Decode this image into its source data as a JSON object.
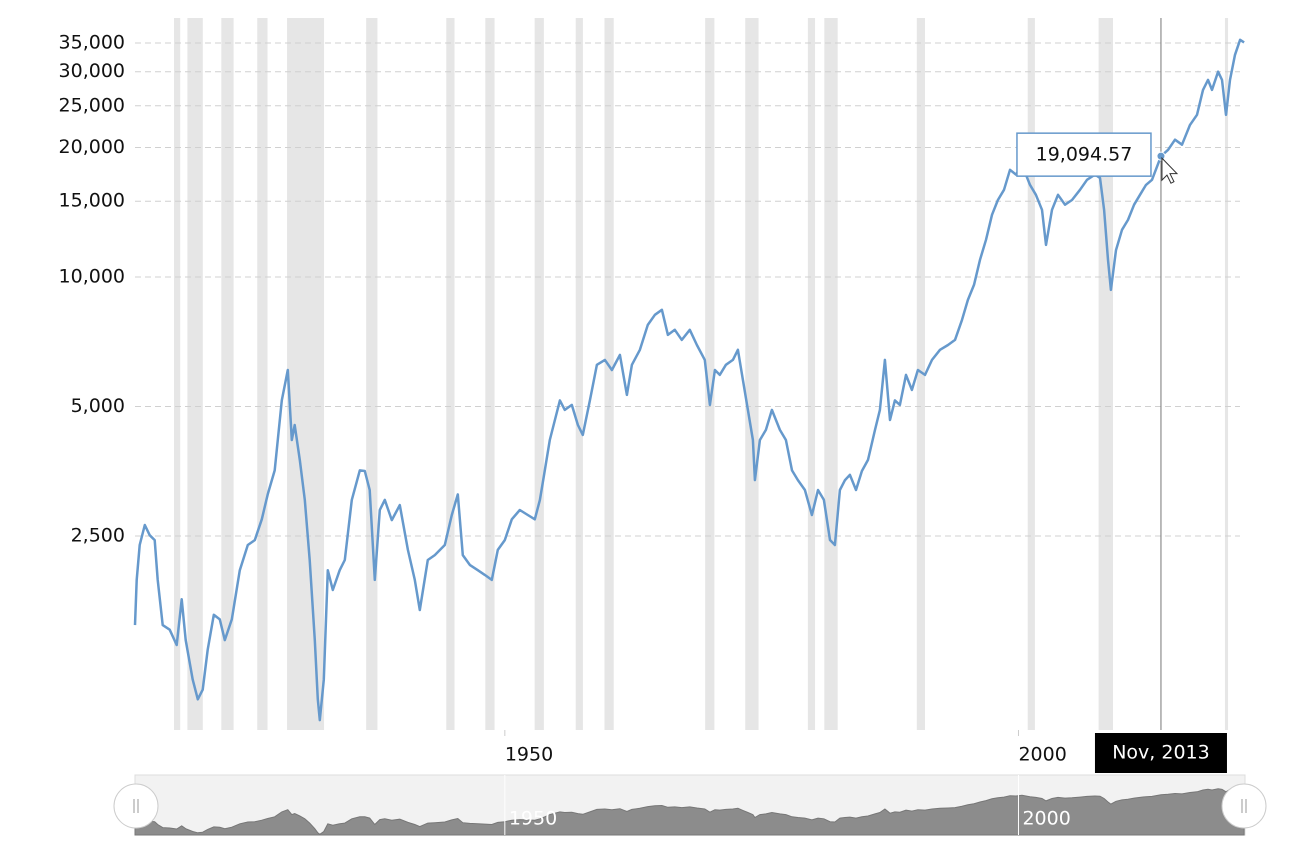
{
  "chart_data": {
    "type": "line",
    "xlim": [
      1914,
      2022.05
    ],
    "ylim": [
      885,
      40000
    ],
    "log_y": true,
    "grid": true,
    "xticks": [
      1950,
      2000
    ],
    "yticks": [
      {
        "value": 2500,
        "label": "2,500"
      },
      {
        "value": 5000,
        "label": "5,000"
      },
      {
        "value": 10000,
        "label": "10,000"
      },
      {
        "value": 15000,
        "label": "15,000"
      },
      {
        "value": 20000,
        "label": "20,000"
      },
      {
        "value": 25000,
        "label": "25,000"
      },
      {
        "value": 30000,
        "label": "30,000"
      },
      {
        "value": 35000,
        "label": "35,000"
      }
    ],
    "recession_color": "#e6e6e6",
    "recessions": [
      [
        1917.8,
        1918.4
      ],
      [
        1919.1,
        1920.6
      ],
      [
        1922.4,
        1923.6
      ],
      [
        1925.9,
        1926.9
      ],
      [
        1928.8,
        1932.4
      ],
      [
        1936.5,
        1937.6
      ],
      [
        1944.3,
        1945.1
      ],
      [
        1948.1,
        1949.0
      ],
      [
        1952.9,
        1953.8
      ],
      [
        1956.9,
        1957.6
      ],
      [
        1959.7,
        1960.6
      ],
      [
        1969.5,
        1970.4
      ],
      [
        1973.4,
        1974.7
      ],
      [
        1979.5,
        1980.2
      ],
      [
        1981.1,
        1982.4
      ],
      [
        1990.1,
        1990.9
      ],
      [
        2000.9,
        2001.6
      ],
      [
        2007.8,
        2009.2
      ],
      [
        2020.1,
        2020.4
      ]
    ],
    "x": [
      1914.0,
      1914.17,
      1914.46,
      1914.95,
      1915.43,
      1915.92,
      1916.21,
      1916.7,
      1917.38,
      1918.06,
      1918.55,
      1918.94,
      1919.62,
      1920.11,
      1920.59,
      1921.08,
      1921.67,
      1922.25,
      1922.74,
      1923.42,
      1924.2,
      1924.98,
      1925.66,
      1926.34,
      1926.92,
      1927.6,
      1928.29,
      1928.87,
      1929.26,
      1929.55,
      1930.04,
      1930.53,
      1931.01,
      1931.5,
      1931.79,
      1931.99,
      1932.38,
      1932.77,
      1933.25,
      1933.93,
      1934.42,
      1935.1,
      1935.88,
      1936.37,
      1936.85,
      1937.34,
      1937.83,
      1938.32,
      1939.0,
      1939.78,
      1940.56,
      1941.24,
      1941.72,
      1942.5,
      1943.18,
      1944.16,
      1944.84,
      1945.42,
      1945.91,
      1946.59,
      1947.37,
      1948.05,
      1948.73,
      1949.32,
      1950.0,
      1950.68,
      1951.46,
      1952.24,
      1952.92,
      1953.41,
      1953.89,
      1954.38,
      1954.87,
      1955.36,
      1955.84,
      1956.52,
      1957.11,
      1957.59,
      1958.28,
      1958.96,
      1959.74,
      1960.42,
      1961.2,
      1961.88,
      1962.37,
      1963.15,
      1963.92,
      1964.61,
      1965.29,
      1965.87,
      1966.55,
      1967.23,
      1968.01,
      1968.7,
      1969.47,
      1969.96,
      1970.45,
      1970.93,
      1971.52,
      1972.2,
      1972.69,
      1973.17,
      1973.66,
      1974.15,
      1974.34,
      1974.83,
      1975.41,
      1976.0,
      1976.78,
      1977.36,
      1977.95,
      1978.53,
      1979.21,
      1979.89,
      1980.48,
      1981.06,
      1981.65,
      1982.13,
      1982.62,
      1983.11,
      1983.59,
      1984.18,
      1984.76,
      1985.35,
      1986.03,
      1986.51,
      1987.0,
      1987.49,
      1987.97,
      1988.46,
      1989.05,
      1989.63,
      1990.21,
      1990.9,
      1991.58,
      1992.36,
      1993.14,
      1993.82,
      1994.5,
      1995.08,
      1995.67,
      1996.25,
      1996.84,
      1997.42,
      1998.0,
      1998.59,
      1999.17,
      1999.76,
      2000.34,
      2001.12,
      2001.7,
      2002.29,
      2002.68,
      2003.26,
      2003.85,
      2004.53,
      2005.21,
      2005.99,
      2006.67,
      2007.45,
      2007.94,
      2008.33,
      2008.71,
      2009.0,
      2009.49,
      2010.08,
      2010.66,
      2011.25,
      2011.83,
      2012.41,
      2013.0,
      2013.87,
      2014.56,
      2015.24,
      2015.92,
      2016.7,
      2017.38,
      2017.96,
      2018.45,
      2018.84,
      2019.43,
      2019.81,
      2020.2,
      2020.59,
      2021.08,
      2021.57,
      2021.96
    ],
    "series": [
      {
        "color": "#6699cc",
        "values": [
          1552,
          1976,
          2382,
          2652,
          2510,
          2446,
          1976,
          1552,
          1514,
          1395,
          1781,
          1432,
          1159,
          1043,
          1098,
          1360,
          1640,
          1600,
          1432,
          1600,
          2082,
          2382,
          2446,
          2734,
          3123,
          3552,
          5166,
          6080,
          4180,
          4528,
          3756,
          3032,
          2198,
          1432,
          1043,
          933,
          1159,
          2082,
          1872,
          2082,
          2198,
          3032,
          3552,
          3540,
          3198,
          1976,
          2873,
          3032,
          2722,
          2950,
          2320,
          1976,
          1682,
          2198,
          2257,
          2382,
          2798,
          3123,
          2257,
          2142,
          2082,
          2030,
          1976,
          2320,
          2446,
          2734,
          2873,
          2798,
          2734,
          3032,
          3552,
          4180,
          4652,
          5166,
          4910,
          5042,
          4528,
          4295,
          5166,
          6250,
          6416,
          6080,
          6590,
          5320,
          6250,
          6772,
          7738,
          8166,
          8388,
          7335,
          7538,
          7140,
          7538,
          6950,
          6416,
          5042,
          6080,
          5920,
          6250,
          6416,
          6772,
          5765,
          4910,
          4180,
          3372,
          4180,
          4412,
          4910,
          4412,
          4180,
          3552,
          3372,
          3198,
          2798,
          3198,
          3032,
          2447,
          2382,
          3198,
          3372,
          3468,
          3198,
          3540,
          3756,
          4412,
          4910,
          6416,
          4652,
          5166,
          5042,
          5920,
          5465,
          6080,
          5920,
          6416,
          6772,
          6950,
          7140,
          7950,
          8845,
          9588,
          10963,
          12200,
          13950,
          15100,
          15950,
          17750,
          17300,
          18230,
          16375,
          15525,
          14325,
          11875,
          14325,
          15525,
          14725,
          15100,
          15950,
          16825,
          17300,
          17000,
          14325,
          10963,
          9332,
          11550,
          12875,
          13575,
          14725,
          15525,
          16375,
          16825,
          19094.57,
          19750,
          20850,
          20300,
          22575,
          23825,
          27225,
          28725,
          27225,
          30000,
          28725,
          23825,
          28725,
          32850,
          35600,
          35100
        ]
      }
    ],
    "tooltip": {
      "x": 2013.87,
      "date_label": "Nov, 2013",
      "value": 19094.57,
      "value_label": "19,094.57"
    }
  }
}
